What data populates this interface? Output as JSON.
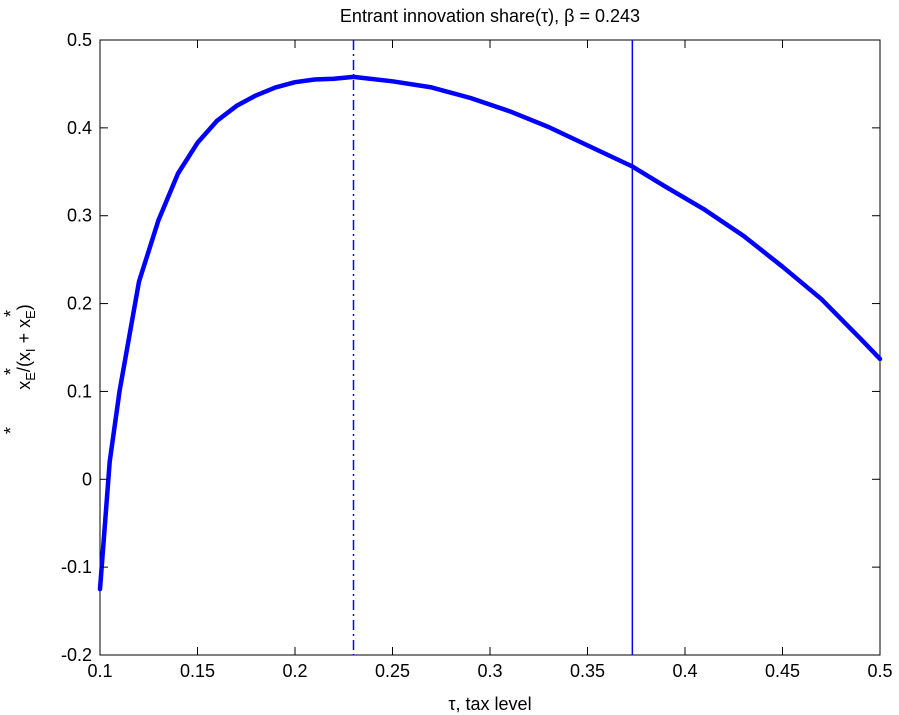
{
  "chart_data": {
    "type": "line",
    "title": "Entrant innovation share(τ), β = 0.243",
    "xlabel": "τ, tax level",
    "ylabel": "x*E/(x*I + x*E)",
    "ylabel_parts": {
      "var1": "x",
      "sub1": "E",
      "open": "/(x",
      "sub2": "I",
      "plus": " + x",
      "sub3": "E",
      "close": ")",
      "star": "*"
    },
    "xlim": [
      0.1,
      0.5
    ],
    "ylim": [
      -0.2,
      0.5
    ],
    "xticks": [
      0.1,
      0.15,
      0.2,
      0.25,
      0.3,
      0.35,
      0.4,
      0.45,
      0.5
    ],
    "xtick_labels": [
      "0.1",
      "0.15",
      "0.2",
      "0.25",
      "0.3",
      "0.35",
      "0.4",
      "0.45",
      "0.5"
    ],
    "yticks": [
      -0.2,
      -0.1,
      0,
      0.1,
      0.2,
      0.3,
      0.4,
      0.5
    ],
    "ytick_labels": [
      "-0.2",
      "-0.1",
      "0",
      "0.1",
      "0.2",
      "0.3",
      "0.4",
      "0.5"
    ],
    "grid": false,
    "line_color": "#0000ff",
    "series": [
      {
        "x": [
          0.1,
          0.105,
          0.11,
          0.12,
          0.13,
          0.14,
          0.15,
          0.16,
          0.17,
          0.18,
          0.19,
          0.2,
          0.21,
          0.22,
          0.23,
          0.25,
          0.27,
          0.29,
          0.31,
          0.33,
          0.35,
          0.373,
          0.39,
          0.41,
          0.43,
          0.45,
          0.47,
          0.49,
          0.5
        ],
        "y": [
          -0.125,
          0.02,
          0.1,
          0.225,
          0.295,
          0.348,
          0.383,
          0.408,
          0.425,
          0.437,
          0.446,
          0.452,
          0.455,
          0.456,
          0.458,
          0.453,
          0.446,
          0.434,
          0.419,
          0.401,
          0.38,
          0.356,
          0.333,
          0.307,
          0.277,
          0.242,
          0.205,
          0.16,
          0.137
        ]
      }
    ],
    "vlines": [
      {
        "x": 0.23,
        "style": "dash-dot"
      },
      {
        "x": 0.373,
        "style": "solid"
      }
    ]
  }
}
